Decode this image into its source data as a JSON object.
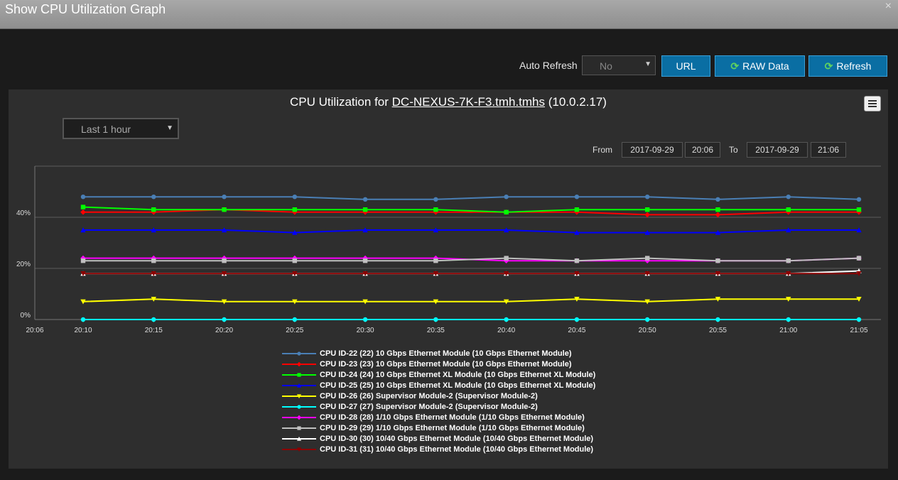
{
  "window": {
    "title": "Show CPU Utilization Graph",
    "close_glyph": "×"
  },
  "toolbar": {
    "auto_refresh_label": "Auto Refresh",
    "auto_refresh_value": "No",
    "url_label": "URL",
    "raw_data_label": "RAW Data",
    "refresh_label": "Refresh"
  },
  "chart_header": {
    "title_prefix": "CPU Utilization for ",
    "device_link": "DC-NEXUS-7K-F3.tmh.tmhs",
    "title_suffix": " (10.0.2.17)",
    "time_range": "Last 1 hour"
  },
  "date_range": {
    "from_label": "From",
    "from_date": "2017-09-29",
    "from_time": "20:06",
    "to_label": "To",
    "to_date": "2017-09-29",
    "to_time": "21:06"
  },
  "chart_data": {
    "type": "line",
    "title": "CPU Utilization for DC-NEXUS-7K-F3.tmh.tmhs (10.0.2.17)",
    "x": [
      "20:10",
      "20:15",
      "20:20",
      "20:25",
      "20:30",
      "20:35",
      "20:40",
      "20:45",
      "20:50",
      "20:55",
      "21:00",
      "21:05"
    ],
    "x_axis_start": "20:06",
    "y_ticks": [
      "0%",
      "20%",
      "40%"
    ],
    "ylim": [
      0,
      60
    ],
    "grid": true,
    "legend_position": "bottom",
    "series": [
      {
        "name": "CPU ID-22 (22) 10 Gbps Ethernet Module (10 Gbps Ethernet Module)",
        "color": "#4a7fb5",
        "marker": "circle",
        "values": [
          48,
          48,
          48,
          48,
          47,
          47,
          48,
          48,
          48,
          47,
          48,
          47
        ]
      },
      {
        "name": "CPU ID-23 (23) 10 Gbps Ethernet Module (10 Gbps Ethernet Module)",
        "color": "#ff0000",
        "marker": "diamond",
        "values": [
          42,
          42,
          43,
          42,
          42,
          42,
          42,
          42,
          41,
          41,
          42,
          42
        ]
      },
      {
        "name": "CPU ID-24 (24) 10 Gbps Ethernet XL Module (10 Gbps Ethernet XL Module)",
        "color": "#00ff00",
        "marker": "square",
        "values": [
          44,
          43,
          43,
          43,
          43,
          43,
          42,
          43,
          43,
          43,
          43,
          43
        ]
      },
      {
        "name": "CPU ID-25 (25) 10 Gbps Ethernet XL Module (10 Gbps Ethernet XL Module)",
        "color": "#0000ff",
        "marker": "triangle",
        "values": [
          35,
          35,
          35,
          34,
          35,
          35,
          35,
          34,
          34,
          34,
          35,
          35
        ]
      },
      {
        "name": "CPU ID-26 (26) Supervisor Module-2 (Supervisor Module-2)",
        "color": "#ffff00",
        "marker": "triangle-down",
        "values": [
          7,
          8,
          7,
          7,
          7,
          7,
          7,
          8,
          7,
          8,
          8,
          8
        ]
      },
      {
        "name": "CPU ID-27 (27) Supervisor Module-2 (Supervisor Module-2)",
        "color": "#00ffff",
        "marker": "circle",
        "values": [
          0,
          0,
          0,
          0,
          0,
          0,
          0,
          0,
          0,
          0,
          0,
          0
        ]
      },
      {
        "name": "CPU ID-28 (28) 1/10 Gbps Ethernet Module (1/10 Gbps Ethernet Module)",
        "color": "#ff00ff",
        "marker": "diamond",
        "values": [
          24,
          24,
          24,
          24,
          24,
          24,
          23,
          23,
          23,
          23,
          23,
          24
        ]
      },
      {
        "name": "CPU ID-29 (29) 1/10 Gbps Ethernet Module (1/10 Gbps Ethernet Module)",
        "color": "#c0c0c0",
        "marker": "square",
        "values": [
          23,
          23,
          23,
          23,
          23,
          23,
          24,
          23,
          24,
          23,
          23,
          24
        ]
      },
      {
        "name": "CPU ID-30 (30) 10/40 Gbps Ethernet Module (10/40 Gbps Ethernet Module)",
        "color": "#ffffff",
        "marker": "triangle",
        "values": [
          18,
          18,
          18,
          18,
          18,
          18,
          18,
          18,
          18,
          18,
          18,
          19
        ]
      },
      {
        "name": "CPU ID-31 (31) 10/40 Gbps Ethernet Module (10/40 Gbps Ethernet Module)",
        "color": "#8b0000",
        "marker": "triangle-down",
        "values": [
          18,
          18,
          18,
          18,
          18,
          18,
          18,
          18,
          18,
          18,
          18,
          18
        ]
      }
    ]
  }
}
